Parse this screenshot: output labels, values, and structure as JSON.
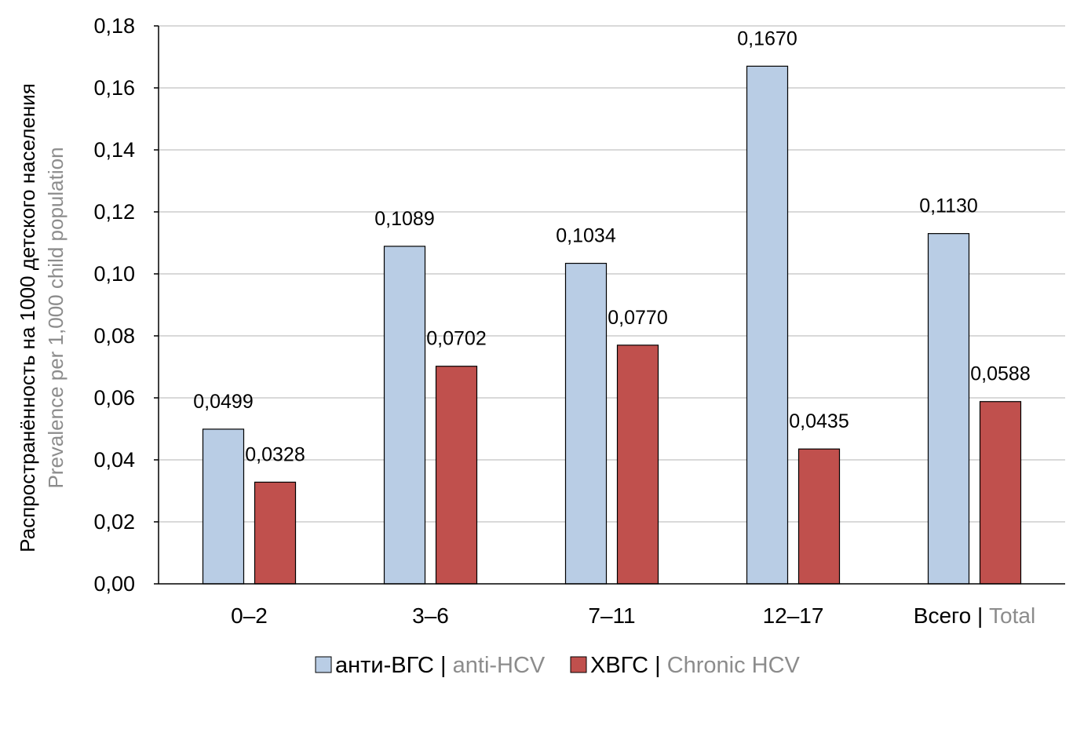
{
  "chart_data": {
    "type": "bar",
    "title": "",
    "ylabel": "Распространённость на 1000 детского населения",
    "ylabel_en": "Prevalence per 1,000 child population",
    "xlabel": "",
    "categories": [
      {
        "ru": "0–2",
        "en": ""
      },
      {
        "ru": "3–6",
        "en": ""
      },
      {
        "ru": "7–11",
        "en": ""
      },
      {
        "ru": "12–17",
        "en": ""
      },
      {
        "ru": "Всего",
        "en": "Total"
      }
    ],
    "series": [
      {
        "name": "анти-ВГС",
        "name_en": "anti-HCV",
        "color": "#b9cde5",
        "values": [
          0.0499,
          0.1089,
          0.1034,
          0.167,
          0.113
        ],
        "labels": [
          "0,0499",
          "0,1089",
          "0,1034",
          "0,1670",
          "0,1130"
        ]
      },
      {
        "name": "ХВГС",
        "name_en": "Chronic HCV",
        "color": "#c0504d",
        "values": [
          0.0328,
          0.0702,
          0.077,
          0.0435,
          0.0588
        ],
        "labels": [
          "0,0328",
          "0,0702",
          "0,0770",
          "0,0435",
          "0,0588"
        ]
      }
    ],
    "ylim": [
      0,
      0.18
    ],
    "yticks": [
      "0,00",
      "0,02",
      "0,04",
      "0,06",
      "0,08",
      "0,10",
      "0,12",
      "0,14",
      "0,16",
      "0,18"
    ],
    "grid": true,
    "legend": "bottom"
  }
}
